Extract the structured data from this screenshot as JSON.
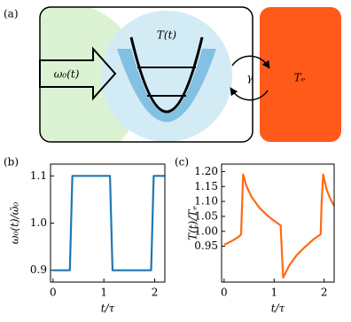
{
  "diagram": {
    "panel_label": "(a)",
    "labels": {
      "bath_temperature": "T(t)",
      "frequency": "ω₀(t)",
      "coupling": "γ",
      "reservoir": "Tₑ"
    }
  },
  "chart_data": [
    {
      "type": "line",
      "panel_label": "(b)",
      "x_label": "t/τ",
      "y_label": "ω₀(t)/ω̄₀",
      "x": [
        0,
        0.33,
        0.38,
        1.12,
        1.17,
        1.93,
        1.98,
        2.2
      ],
      "series": [
        {
          "color": "#1f77b4",
          "values": [
            0.9,
            0.9,
            1.1,
            1.1,
            0.9,
            0.9,
            1.1,
            1.1
          ]
        }
      ],
      "xlim": [
        -0.05,
        2.2
      ],
      "ylim": [
        0.875,
        1.125
      ],
      "xticks": [
        0,
        1,
        2
      ],
      "yticks": [
        0.9,
        {
          "value": 1,
          "label": "1.0"
        },
        1.1
      ]
    },
    {
      "type": "line",
      "panel_label": "(c)",
      "x_label": "t/τ",
      "y_label": "T(t)/Tₑ",
      "x": [
        0,
        0.1,
        0.2,
        0.3,
        0.34,
        0.38,
        0.45,
        0.55,
        0.7,
        0.85,
        1.0,
        1.13,
        1.15,
        1.18,
        1.3,
        1.45,
        1.6,
        1.8,
        1.93,
        1.95,
        1.98,
        2.05,
        2.12,
        2.2
      ],
      "series": [
        {
          "color": "#ff6a14",
          "values": [
            0.955,
            0.963,
            0.972,
            0.983,
            0.99,
            1.19,
            1.15,
            1.115,
            1.08,
            1.055,
            1.035,
            1.02,
            0.95,
            0.845,
            0.885,
            0.92,
            0.945,
            0.975,
            0.99,
            1.1,
            1.19,
            1.14,
            1.11,
            1.085
          ]
        }
      ],
      "xlim": [
        -0.05,
        2.2
      ],
      "ylim": [
        0.83,
        1.225
      ],
      "xticks": [
        0,
        1,
        2
      ],
      "yticks": [
        0.95,
        {
          "value": 1,
          "label": "1.00"
        },
        1.05,
        {
          "value": 1.1,
          "label": "1.10"
        },
        1.15,
        {
          "value": 1.2,
          "label": "1.20"
        }
      ]
    }
  ]
}
